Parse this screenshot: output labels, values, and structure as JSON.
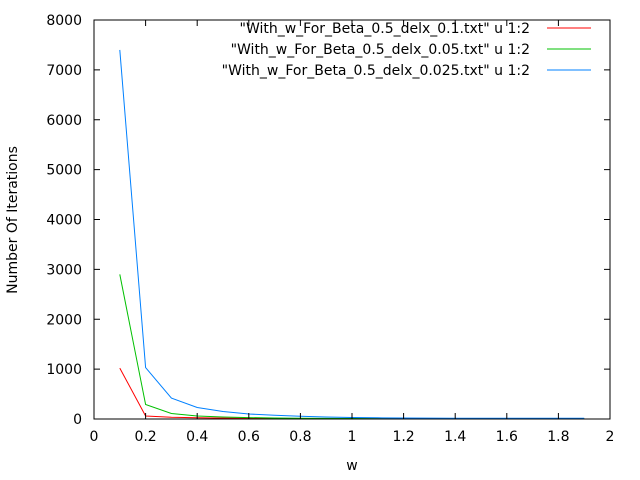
{
  "chart_data": {
    "type": "line",
    "title": "",
    "xlabel": "w",
    "ylabel": "Number Of Iterations",
    "xlim": [
      0,
      2
    ],
    "ylim": [
      0,
      8000
    ],
    "xticks": [
      0,
      0.2,
      0.4,
      0.6,
      0.8,
      1,
      1.2,
      1.4,
      1.6,
      1.8,
      2
    ],
    "yticks": [
      0,
      1000,
      2000,
      3000,
      4000,
      5000,
      6000,
      7000,
      8000
    ],
    "grid": false,
    "legend_position": "top-right",
    "series": [
      {
        "name": "\"With_w_For_Beta_0.5_delx_0.1.txt\" u 1:2",
        "color": "#ff0000",
        "x": [
          0.1,
          0.2,
          0.3,
          0.4,
          0.5,
          0.6,
          0.7,
          0.8,
          0.9,
          1.0,
          1.1,
          1.2,
          1.3,
          1.4,
          1.5,
          1.6,
          1.7,
          1.8,
          1.9
        ],
        "y": [
          1020,
          60,
          35,
          25,
          18,
          14,
          11,
          9,
          8,
          7,
          6,
          6,
          6,
          6,
          6,
          6,
          6,
          6,
          6
        ]
      },
      {
        "name": "\"With_w_For_Beta_0.5_delx_0.05.txt\" u 1:2",
        "color": "#00c000",
        "x": [
          0.1,
          0.2,
          0.3,
          0.4,
          0.5,
          0.6,
          0.7,
          0.8,
          0.9,
          1.0,
          1.1,
          1.2,
          1.3,
          1.4,
          1.5,
          1.6,
          1.7,
          1.8,
          1.9
        ],
        "y": [
          2900,
          290,
          110,
          60,
          40,
          28,
          20,
          15,
          12,
          10,
          9,
          9,
          9,
          9,
          9,
          9,
          9,
          9,
          9
        ]
      },
      {
        "name": "\"With_w_For_Beta_0.5_delx_0.025.txt\" u 1:2",
        "color": "#0080ff",
        "x": [
          0.1,
          0.2,
          0.3,
          0.4,
          0.5,
          0.6,
          0.7,
          0.8,
          0.9,
          1.0,
          1.1,
          1.2,
          1.3,
          1.4,
          1.5,
          1.6,
          1.7,
          1.8,
          1.9
        ],
        "y": [
          7400,
          1030,
          420,
          230,
          150,
          100,
          75,
          55,
          40,
          30,
          25,
          20,
          18,
          16,
          15,
          15,
          14,
          14,
          14
        ]
      }
    ]
  }
}
